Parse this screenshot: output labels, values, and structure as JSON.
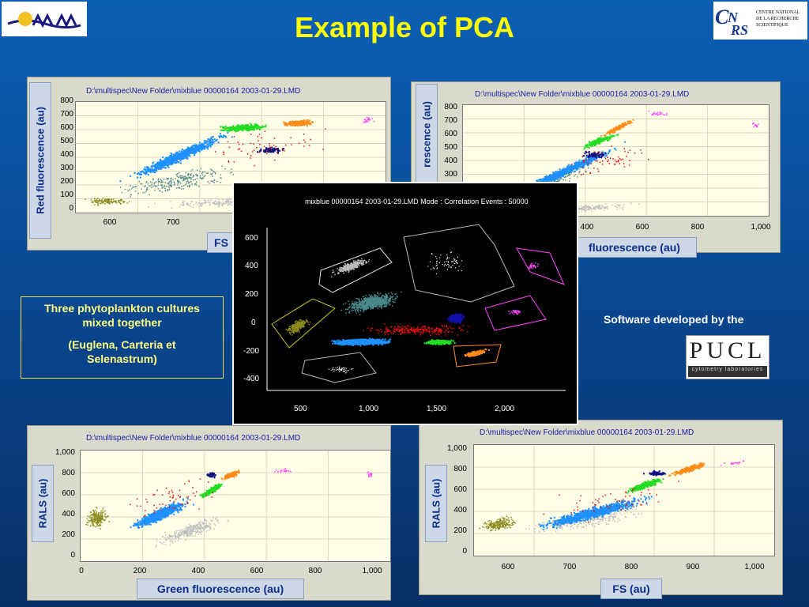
{
  "slide": {
    "title": "Example of PCA",
    "info_line1": "Three phytoplankton cultures mixed together",
    "info_line2": "(Euglena, Carteria et Selenastrum)",
    "software_text": "Software developed by the",
    "cnrs_text": [
      "CENTRE NATIONAL",
      "DE LA RECHERCHE",
      "SCIENTIFIQUE"
    ],
    "pucl_logo": "PUCL",
    "pucl_sub": "cytometry laboratories"
  },
  "plot_tl": {
    "path": "D:\\multispec\\New Folder\\mixblue 00000164 2003-01-29.LMD",
    "ylabel": "Red fluorescence (au)",
    "xlabel": "FS",
    "yticks": [
      "800",
      "700",
      "600",
      "500",
      "400",
      "300",
      "200",
      "100",
      "0"
    ],
    "xticks": [
      "600",
      "700",
      "8"
    ]
  },
  "plot_tr": {
    "path": "D:\\multispec\\New Folder\\mixblue 00000164 2003-01-29.LMD",
    "ylabel": "rescence (au)",
    "xlabel": "fluorescence (au)",
    "yticks": [
      "800",
      "700",
      "600",
      "500",
      "400",
      "300"
    ],
    "xticks": [
      "400",
      "600",
      "800",
      "1,000"
    ]
  },
  "plot_bl": {
    "path": "D:\\multispec\\New Folder\\mixblue 00000164 2003-01-29.LMD",
    "ylabel": "RALS (au)",
    "xlabel": "Green fluorescence (au)",
    "yticks": [
      "1,000",
      "800",
      "600",
      "400",
      "200",
      "0"
    ],
    "xticks": [
      "0",
      "200",
      "400",
      "600",
      "800",
      "1,000"
    ]
  },
  "plot_br": {
    "path": "D:\\multispec\\New Folder\\mixblue 00000164 2003-01-29.LMD",
    "ylabel": "RALS (au)",
    "xlabel": "FS (au)",
    "yticks": [
      "1,000",
      "800",
      "600",
      "400",
      "200",
      "0"
    ],
    "xticks": [
      "600",
      "700",
      "800",
      "900",
      "1,000"
    ]
  },
  "pca": {
    "title": "mixblue 00000164 2003-01-29.LMD Mode : Correlation Events : 50000",
    "yticks": [
      "600",
      "400",
      "200",
      "0",
      "-200",
      "-400"
    ],
    "xticks": [
      "500",
      "1,000",
      "1,500",
      "2,000"
    ]
  },
  "colors": {
    "background": "#0a4f9c",
    "title": "#ffff00",
    "blue": "#1e90ff",
    "green": "#22dd22",
    "orange": "#ff8c1a",
    "navy": "#101080",
    "magenta": "#ff44ff",
    "olive": "#8a8a1e",
    "teal": "#5a8c8c",
    "gray": "#bdbdbd",
    "red": "#e01010"
  }
}
